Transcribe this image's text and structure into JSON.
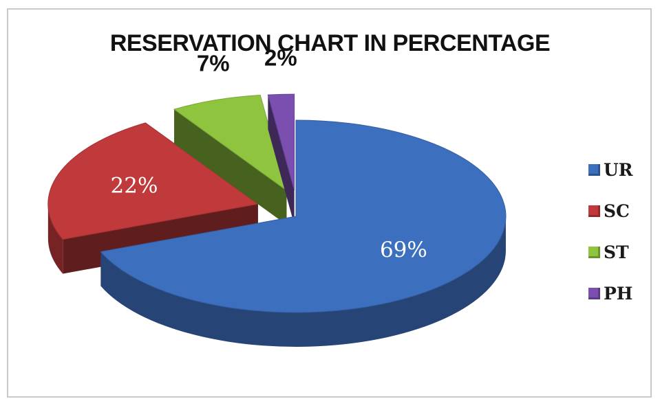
{
  "chart_data": {
    "type": "pie",
    "title": "RESERVATION CHART IN PERCENTAGE",
    "categories": [
      "UR",
      "SC",
      "ST",
      "PH"
    ],
    "values": [
      69,
      22,
      7,
      2
    ],
    "labels": [
      "69%",
      "22%",
      "7%",
      "2%"
    ],
    "colors": [
      "#3d6fbf",
      "#c0393b",
      "#8ec43e",
      "#7a4fb0"
    ],
    "legend": "right"
  }
}
